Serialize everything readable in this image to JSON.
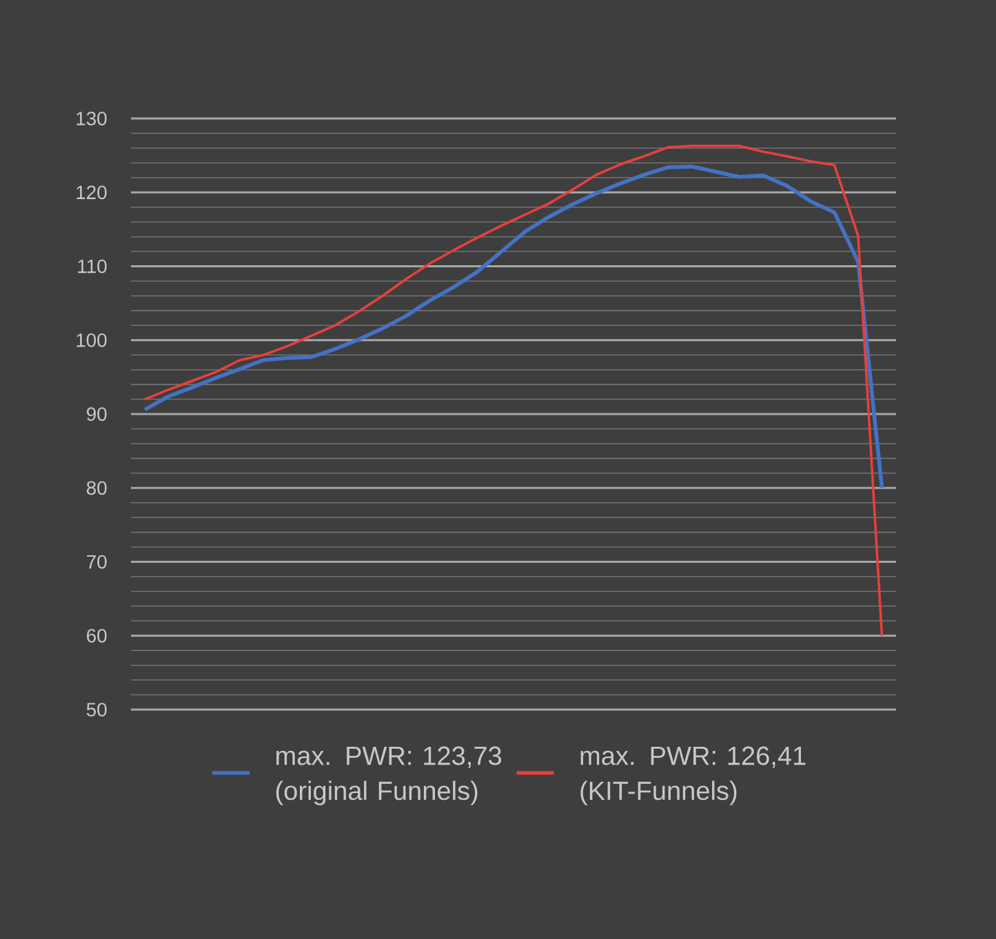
{
  "chart_data": {
    "type": "line",
    "categories": [
      null,
      null,
      null,
      null,
      null,
      null,
      null,
      null,
      null,
      null,
      null,
      null,
      null,
      null,
      null,
      null,
      null,
      null,
      null,
      null,
      null,
      null,
      null,
      null,
      null,
      null,
      null,
      null,
      null,
      null,
      null,
      null
    ],
    "series": [
      {
        "name": "max. PWR: 123,73 (original Funnels)",
        "color": "#4472c4",
        "values": [
          90.6,
          92.4,
          93.6,
          94.9,
          96.1,
          97.3,
          97.6,
          97.7,
          98.8,
          100.1,
          101.6,
          103.3,
          105.4,
          107.2,
          109.3,
          112.0,
          114.7,
          116.7,
          118.4,
          119.9,
          121.2,
          122.4,
          123.4,
          123.5,
          122.8,
          122.1,
          122.3,
          120.9,
          118.8,
          117.3,
          110.6,
          80
        ]
      },
      {
        "name": "max. PWR: 126,41 (KIT-Funnels)",
        "color": "#e8403c",
        "values": [
          92.0,
          93.3,
          94.5,
          95.7,
          97.3,
          98.0,
          99.2,
          100.6,
          102.0,
          103.9,
          106.0,
          108.3,
          110.4,
          112.2,
          113.9,
          115.5,
          117.0,
          118.5,
          120.4,
          122.4,
          123.8,
          124.9,
          126.1,
          126.3,
          126.3,
          126.3,
          125.5,
          124.9,
          124.2,
          123.7,
          114.1,
          60
        ]
      }
    ],
    "ylim": [
      50,
      130
    ],
    "yticks": [
      50,
      60,
      70,
      80,
      90,
      100,
      110,
      120,
      130
    ],
    "grid": "y",
    "legend": "bottom",
    "tick_labels": "y"
  }
}
